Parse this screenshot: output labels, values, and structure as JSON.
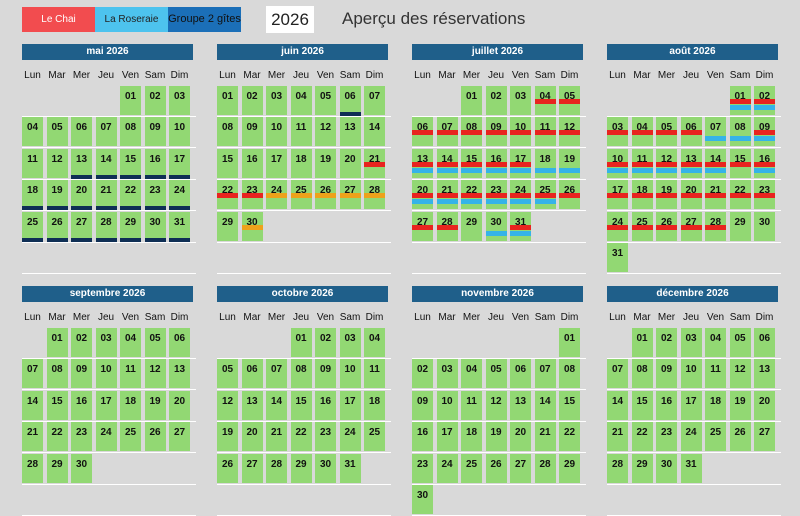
{
  "legend": {
    "chai": {
      "label": "Le Chai",
      "color": "#f24c4f"
    },
    "roseraie": {
      "label": "La Roseraie",
      "color": "#4dc3ee"
    },
    "groupe": {
      "label": "Groupe 2 gîtes",
      "color": "#1b6fb8"
    }
  },
  "year": "2026",
  "title": "Aperçu des réservations",
  "weekdays": [
    "Lun",
    "Mar",
    "Mer",
    "Jeu",
    "Ven",
    "Sam",
    "Dim"
  ],
  "months": [
    {
      "name": "mai 2026",
      "start_weekday": 5,
      "days": 31,
      "bookings": {
        "13": [
          "grp"
        ],
        "14": [
          "grp"
        ],
        "15": [
          "grp"
        ],
        "16": [
          "grp"
        ],
        "17": [
          "grp"
        ],
        "18": [
          "grp"
        ],
        "19": [
          "grp"
        ],
        "20": [
          "grp"
        ],
        "21": [
          "grp"
        ],
        "22": [
          "grp"
        ],
        "23": [
          "grp"
        ],
        "24": [
          "grp"
        ],
        "25": [
          "grp"
        ],
        "26": [
          "grp"
        ],
        "27": [
          "grp"
        ],
        "28": [
          "grp"
        ],
        "29": [
          "grp"
        ],
        "30": [
          "grp"
        ],
        "31": [
          "grp"
        ]
      }
    },
    {
      "name": "juin 2026",
      "start_weekday": 1,
      "days": 30,
      "bookings": {
        "06": [
          "grp"
        ],
        "21": [
          "chai"
        ],
        "22": [
          "chai"
        ],
        "23": [
          "chai"
        ],
        "24": [
          "mix"
        ],
        "25": [
          "mix"
        ],
        "26": [
          "mix"
        ],
        "27": [
          "mix"
        ],
        "28": [
          "mix"
        ],
        "30": [
          "mix"
        ]
      }
    },
    {
      "name": "juillet 2026",
      "start_weekday": 3,
      "days": 31,
      "bookings": {
        "04": [
          "chai"
        ],
        "05": [
          "chai"
        ],
        "06": [
          "chai"
        ],
        "07": [
          "chai"
        ],
        "08": [
          "chai"
        ],
        "09": [
          "chai"
        ],
        "10": [
          "chai"
        ],
        "11": [
          "chai"
        ],
        "12": [
          "chai"
        ],
        "13": [
          "chai",
          "ros"
        ],
        "14": [
          "chai",
          "ros"
        ],
        "15": [
          "chai",
          "ros"
        ],
        "16": [
          "chai",
          "ros"
        ],
        "17": [
          "chai",
          "ros"
        ],
        "18": [
          "ros"
        ],
        "19": [
          "ros"
        ],
        "20": [
          "chai",
          "ros"
        ],
        "21": [
          "chai",
          "ros"
        ],
        "22": [
          "chai",
          "ros"
        ],
        "23": [
          "chai",
          "ros"
        ],
        "24": [
          "chai",
          "ros"
        ],
        "25": [
          "chai",
          "ros"
        ],
        "26": [
          "chai"
        ],
        "27": [
          "chai"
        ],
        "28": [
          "chai"
        ],
        "30": [
          "ros"
        ],
        "31": [
          "chai",
          "ros"
        ]
      }
    },
    {
      "name": "août 2026",
      "start_weekday": 6,
      "days": 31,
      "bookings": {
        "01": [
          "chai",
          "ros"
        ],
        "02": [
          "chai",
          "ros"
        ],
        "03": [
          "chai"
        ],
        "04": [
          "chai"
        ],
        "05": [
          "chai"
        ],
        "06": [
          "chai"
        ],
        "07": [
          "ros"
        ],
        "08": [
          "ros"
        ],
        "09": [
          "chai",
          "ros"
        ],
        "10": [
          "chai",
          "ros"
        ],
        "11": [
          "chai",
          "ros"
        ],
        "12": [
          "chai",
          "ros"
        ],
        "13": [
          "chai",
          "ros"
        ],
        "14": [
          "chai",
          "ros"
        ],
        "15": [
          "chai"
        ],
        "16": [
          "chai",
          "ros"
        ],
        "17": [
          "chai"
        ],
        "18": [
          "chai"
        ],
        "19": [
          "chai"
        ],
        "20": [
          "chai"
        ],
        "21": [
          "chai"
        ],
        "22": [
          "chai"
        ],
        "23": [
          "chai"
        ],
        "24": [
          "chai"
        ],
        "25": [
          "chai"
        ],
        "26": [
          "chai"
        ],
        "27": [
          "chai"
        ],
        "28": [
          "chai"
        ]
      }
    },
    {
      "name": "septembre 2026",
      "start_weekday": 2,
      "days": 30,
      "bookings": {}
    },
    {
      "name": "octobre 2026",
      "start_weekday": 4,
      "days": 31,
      "bookings": {}
    },
    {
      "name": "novembre 2026",
      "start_weekday": 7,
      "days": 30,
      "bookings": {}
    },
    {
      "name": "décembre 2026",
      "start_weekday": 2,
      "days": 31,
      "bookings": {}
    }
  ]
}
